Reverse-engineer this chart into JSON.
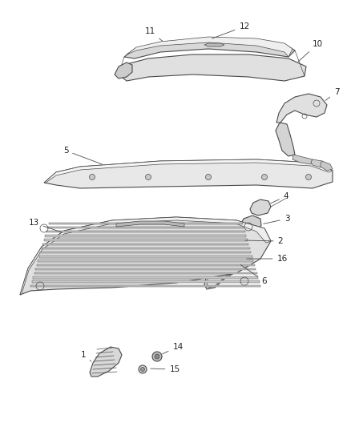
{
  "bg_color": "#ffffff",
  "line_color": "#4a4a4a",
  "label_color": "#222222",
  "fig_width": 4.38,
  "fig_height": 5.33,
  "dpi": 100
}
